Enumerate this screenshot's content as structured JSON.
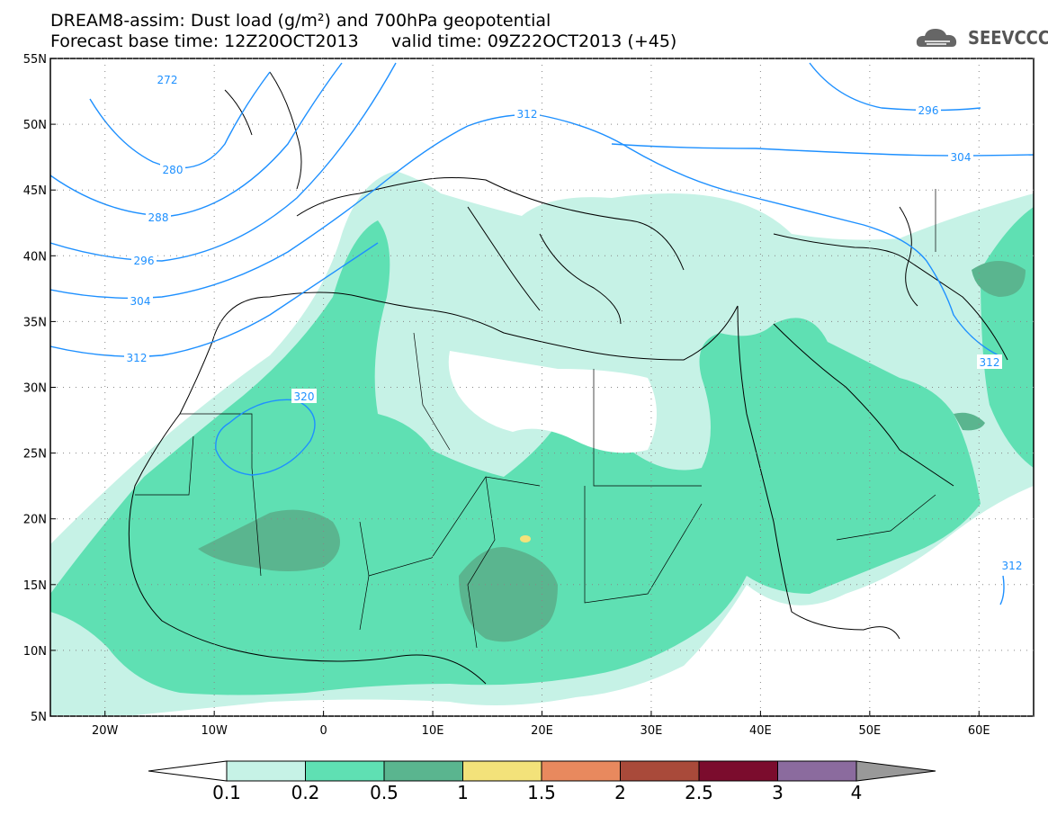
{
  "title": {
    "line1": "DREAM8-assim: Dust load (g/m²) and 700hPa geopotential",
    "line2": "Forecast base time: 12Z20OCT2013      valid time: 09Z22OCT2013 (+45)"
  },
  "logo": {
    "text": "SEEVCCC",
    "icon": "cloud-icon"
  },
  "map": {
    "lon_range": [
      -25,
      65
    ],
    "lat_range": [
      5,
      55
    ],
    "lon_ticks": [
      "20W",
      "10W",
      "0",
      "10E",
      "20E",
      "30E",
      "40E",
      "50E",
      "60E"
    ],
    "lat_ticks": [
      "55N",
      "50N",
      "45N",
      "40N",
      "35N",
      "30N",
      "25N",
      "20N",
      "15N",
      "10N",
      "5N"
    ],
    "contour_labels": [
      "272",
      "280",
      "288",
      "296",
      "304",
      "312",
      "320",
      "312",
      "296",
      "304",
      "312",
      "312"
    ]
  },
  "colorbar": {
    "labels": [
      "0.1",
      "0.2",
      "0.5",
      "1",
      "1.5",
      "2",
      "2.5",
      "3",
      "4"
    ],
    "colors": [
      "#c6f2e6",
      "#5fe0b3",
      "#5ab58f",
      "#f3e27a",
      "#e8895e",
      "#a94a3a",
      "#7b0c2d",
      "#8b6b9e"
    ]
  },
  "colors": {
    "dust_light": "#c6f2e6",
    "dust_mid": "#5fe0b3",
    "dust_dark": "#5ab58f",
    "dust_yellow": "#f3e27a",
    "contour": "#1e90ff"
  }
}
